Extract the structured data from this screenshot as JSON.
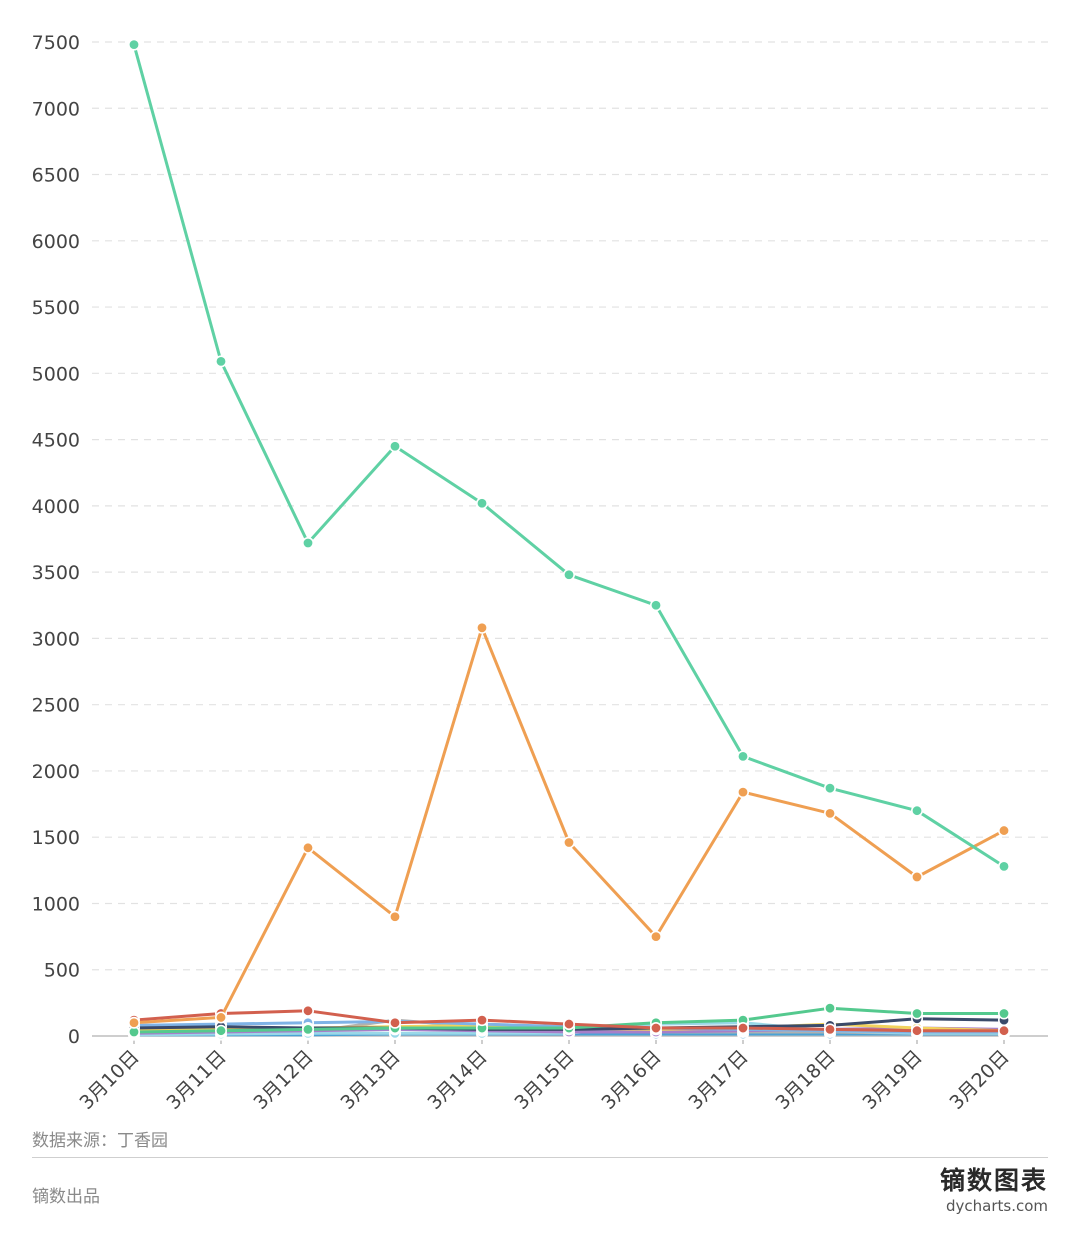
{
  "chart_data": {
    "type": "line",
    "categories": [
      "3月10日",
      "3月11日",
      "3月12日",
      "3月13日",
      "3月14日",
      "3月15日",
      "3月16日",
      "3月17日",
      "3月18日",
      "3月19日",
      "3月20日"
    ],
    "ylim": [
      0,
      7500
    ],
    "yticks": [
      0,
      500,
      1000,
      1500,
      2000,
      2500,
      3000,
      3500,
      4000,
      4500,
      5000,
      5500,
      6000,
      6500,
      7000,
      7500
    ],
    "grid": "horizontal-dashed",
    "series": [
      {
        "color": "#5fd1a4",
        "values": [
          7480,
          5090,
          3720,
          4450,
          4020,
          3480,
          3250,
          2110,
          1870,
          1700,
          1280
        ]
      },
      {
        "color": "#ef9f52",
        "values": [
          100,
          140,
          1420,
          900,
          3080,
          1460,
          750,
          1840,
          1680,
          1200,
          1550
        ]
      },
      {
        "color": "#d2604e",
        "values": [
          120,
          170,
          190,
          100,
          120,
          90,
          60,
          60,
          50,
          40,
          40
        ]
      },
      {
        "color": "#54c98e",
        "values": [
          30,
          40,
          50,
          60,
          60,
          60,
          100,
          120,
          210,
          170,
          170
        ]
      },
      {
        "color": "#3a4a6a",
        "values": [
          60,
          70,
          60,
          60,
          50,
          50,
          60,
          70,
          80,
          130,
          120
        ]
      },
      {
        "color": "#7fb3e6",
        "values": [
          80,
          90,
          100,
          110,
          90,
          70,
          60,
          50,
          40,
          30,
          30
        ]
      },
      {
        "color": "#f2d25c",
        "values": [
          40,
          50,
          60,
          70,
          80,
          60,
          50,
          60,
          90,
          60,
          40
        ]
      },
      {
        "color": "#a77fc9",
        "values": [
          20,
          30,
          40,
          50,
          40,
          30,
          30,
          40,
          50,
          60,
          50
        ]
      },
      {
        "color": "#9ad8e8",
        "values": [
          10,
          15,
          20,
          20,
          20,
          20,
          90,
          100,
          40,
          20,
          20
        ]
      },
      {
        "color": "#b0b0b0",
        "values": [
          50,
          40,
          30,
          120,
          70,
          40,
          30,
          30,
          30,
          20,
          20
        ]
      },
      {
        "color": "#4aa3d6",
        "values": [
          10,
          10,
          10,
          15,
          15,
          15,
          15,
          15,
          15,
          15,
          15
        ]
      }
    ]
  },
  "footer": {
    "source": "数据来源：丁香园",
    "producer": "镝数出品",
    "brand_name": "镝数图表",
    "brand_url": "dycharts.com"
  }
}
